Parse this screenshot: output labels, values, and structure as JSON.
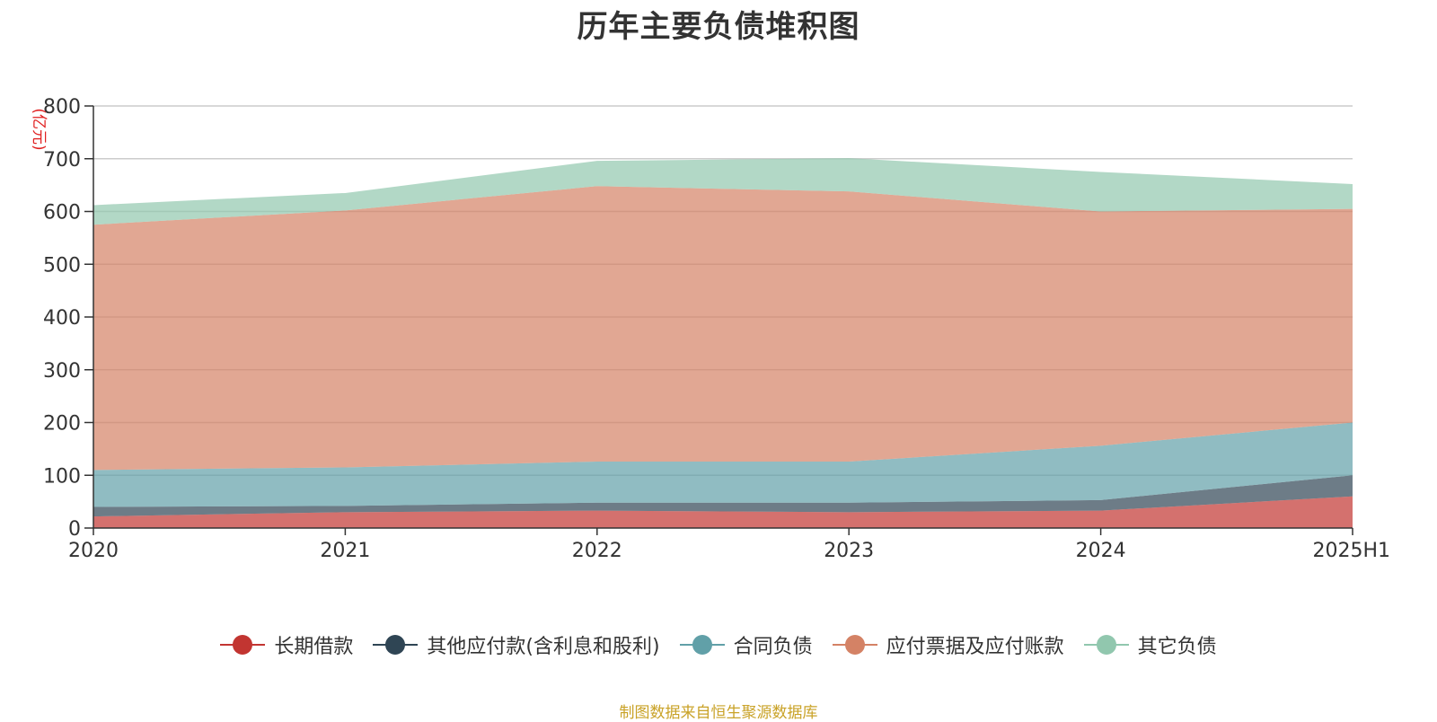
{
  "chart_data": {
    "type": "area",
    "stacked": true,
    "title": "历年主要负债堆积图",
    "ylabel": "(亿元)",
    "xlabel": "",
    "categories": [
      "2020",
      "2021",
      "2022",
      "2023",
      "2024",
      "2025H1"
    ],
    "ylim": [
      0,
      800
    ],
    "yticks": [
      0,
      100,
      200,
      300,
      400,
      500,
      600,
      700,
      800
    ],
    "grid": true,
    "legend_position": "bottom",
    "series": [
      {
        "name": "长期借款",
        "color": "#c23531",
        "values": [
          22,
          30,
          33,
          30,
          33,
          60
        ]
      },
      {
        "name": "其他应付款(含利息和股利)",
        "color": "#2f4554",
        "values": [
          18,
          12,
          15,
          18,
          20,
          40
        ]
      },
      {
        "name": "合同负债",
        "color": "#61a0a8",
        "values": [
          70,
          73,
          78,
          78,
          103,
          100
        ]
      },
      {
        "name": "应付票据及应付账款",
        "color": "#d48265",
        "values": [
          465,
          487,
          522,
          512,
          444,
          405
        ]
      },
      {
        "name": "其它负债",
        "color": "#91c7ae",
        "values": [
          37,
          33,
          48,
          63,
          75,
          47
        ]
      }
    ]
  },
  "source_note": "制图数据来自恒生聚源数据库"
}
